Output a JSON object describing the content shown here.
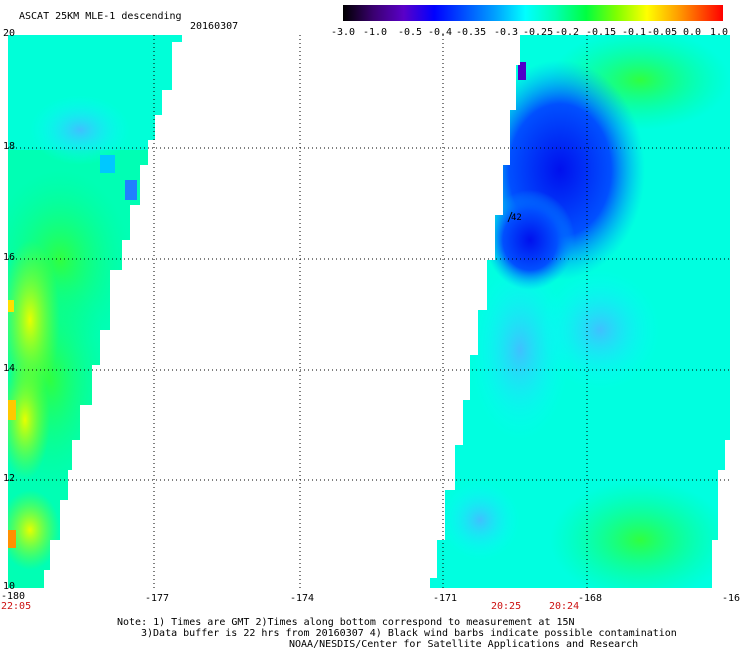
{
  "header": {
    "title": "ASCAT 25KM MLE-1 descending",
    "date": "20160307"
  },
  "colorbar": {
    "labels": [
      "-3.0",
      "-1.0",
      "-0.5",
      "-0.4",
      "-0.35",
      "-0.3",
      "-0.25",
      "-0.2",
      "-0.15",
      "-0.1",
      "-0.05",
      "0.0",
      "1.0"
    ],
    "colors": [
      "#000000",
      "#5a00a8",
      "#0000ff",
      "#0060ff",
      "#00a0ff",
      "#00ffff",
      "#00ff90",
      "#00ff00",
      "#90ff00",
      "#ffff00",
      "#ffa000",
      "#ff4000",
      "#ff0000"
    ]
  },
  "axes": {
    "x_ticks": [
      "-180",
      "-177",
      "-174",
      "-171",
      "-168",
      "-16"
    ],
    "y_ticks": [
      "20",
      "18",
      "16",
      "14",
      "12",
      "10"
    ]
  },
  "times": {
    "left": "22:05",
    "mid_left": "20:25",
    "mid_right": "20:24"
  },
  "barb_label": "42",
  "notes": {
    "line1": "Note: 1) Times are GMT 2)Times along bottom correspond to measurement at 15N",
    "line2": "3)Data buffer is 22 hrs from 20160307 4) Black wind barbs indicate possible contamination",
    "line3": "NOAA/NESDIS/Center for Satellite Applications and Research"
  }
}
